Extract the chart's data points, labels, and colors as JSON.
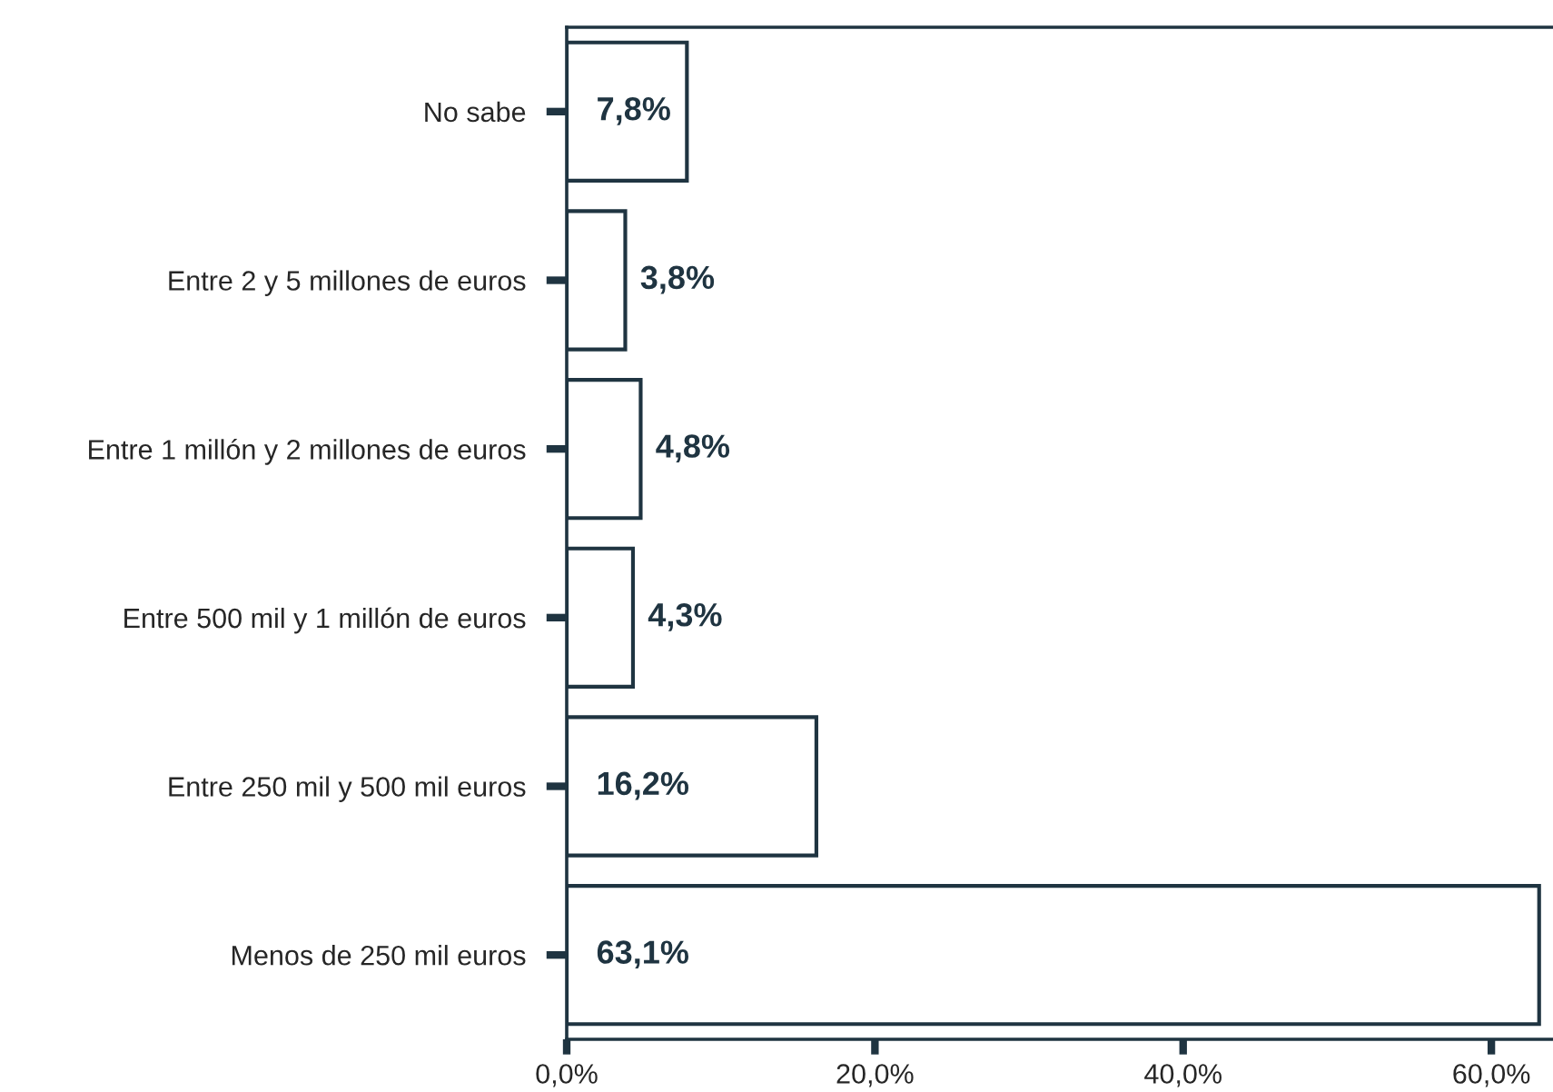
{
  "chart_data": {
    "type": "bar",
    "orientation": "horizontal",
    "categories": [
      "No sabe",
      "Entre 2 y 5 millones de euros",
      "Entre 1 millón y 2 millones de euros",
      "Entre 500 mil y 1 millón de euros",
      "Entre 250 mil y 500 mil euros",
      "Menos de 250 mil euros"
    ],
    "values": [
      7.8,
      3.8,
      4.8,
      4.3,
      16.2,
      63.1
    ],
    "value_labels": [
      "7,8%",
      "3,8%",
      "4,8%",
      "4,3%",
      "16,2%",
      "63,1%"
    ],
    "color": "#ffffff",
    "xlim": [
      0,
      64
    ],
    "xticks": [
      {
        "value": 0,
        "label": "0,0%"
      },
      {
        "value": 20,
        "label": "20,0%"
      },
      {
        "value": 40,
        "label": "40,0%"
      },
      {
        "value": 60,
        "label": "60,0%"
      }
    ],
    "grid": false,
    "legend": false
  }
}
